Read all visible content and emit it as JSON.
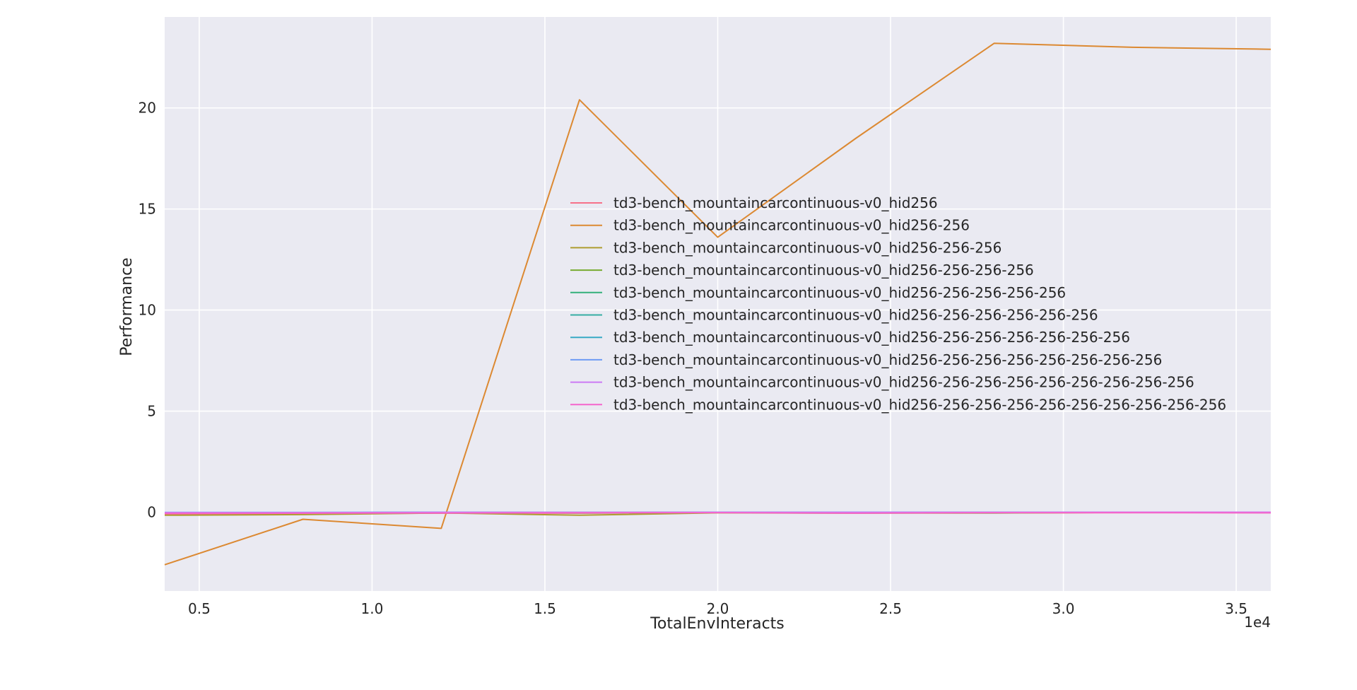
{
  "chart_data": {
    "type": "line",
    "xlabel": "TotalEnvInteracts",
    "ylabel": "Performance",
    "x_offset_label": "1e4",
    "xlim": [
      0.4,
      3.6
    ],
    "ylim": [
      -3.9,
      24.5
    ],
    "x_ticks": [
      0.5,
      1.0,
      1.5,
      2.0,
      2.5,
      3.0,
      3.5
    ],
    "x_tick_labels": [
      "0.5",
      "1.0",
      "1.5",
      "2.0",
      "2.5",
      "3.0",
      "3.5"
    ],
    "y_ticks": [
      0,
      5,
      10,
      15,
      20
    ],
    "y_tick_labels": [
      "0",
      "5",
      "10",
      "15",
      "20"
    ],
    "grid": true,
    "legend_position": "center-right",
    "x": [
      0.4,
      0.8,
      1.2,
      1.6,
      2.0,
      2.4,
      2.8,
      3.2,
      3.6
    ],
    "series": [
      {
        "name": "td3-bench_mountaincarcontinuous-v0_hid256",
        "color": "#f77189",
        "values": [
          -0.1,
          -0.08,
          -0.05,
          -0.05,
          -0.02,
          -0.03,
          -0.04,
          -0.02,
          -0.02
        ]
      },
      {
        "name": "td3-bench_mountaincarcontinuous-v0_hid256-256",
        "color": "#dc8932",
        "values": [
          -2.6,
          -0.35,
          -0.8,
          20.4,
          13.6,
          18.5,
          23.2,
          23.0,
          22.9
        ]
      },
      {
        "name": "td3-bench_mountaincarcontinuous-v0_hid256-256-256",
        "color": "#ae9d31",
        "values": [
          -0.15,
          -0.12,
          -0.04,
          -0.15,
          -0.03,
          -0.05,
          -0.04,
          -0.01,
          -0.02
        ]
      },
      {
        "name": "td3-bench_mountaincarcontinuous-v0_hid256-256-256-256",
        "color": "#77ab31",
        "values": [
          -0.05,
          -0.03,
          -0.02,
          -0.04,
          -0.01,
          -0.02,
          -0.02,
          -0.01,
          -0.01
        ]
      },
      {
        "name": "td3-bench_mountaincarcontinuous-v0_hid256-256-256-256-256",
        "color": "#33b07a",
        "values": [
          -0.03,
          -0.02,
          -0.01,
          -0.02,
          -0.01,
          -0.01,
          -0.01,
          -0.01,
          -0.01
        ]
      },
      {
        "name": "td3-bench_mountaincarcontinuous-v0_hid256-256-256-256-256-256",
        "color": "#36ada4",
        "values": [
          -0.02,
          -0.02,
          -0.01,
          -0.01,
          0.0,
          -0.01,
          -0.01,
          0.0,
          0.0
        ]
      },
      {
        "name": "td3-bench_mountaincarcontinuous-v0_hid256-256-256-256-256-256-256",
        "color": "#38a9c5",
        "values": [
          -0.04,
          -0.03,
          -0.02,
          -0.02,
          -0.01,
          -0.01,
          -0.02,
          -0.01,
          -0.01
        ]
      },
      {
        "name": "td3-bench_mountaincarcontinuous-v0_hid256-256-256-256-256-256-256-256",
        "color": "#6e9bf4",
        "values": [
          -0.01,
          -0.01,
          0.0,
          -0.01,
          0.0,
          0.0,
          0.0,
          0.0,
          0.0
        ]
      },
      {
        "name": "td3-bench_mountaincarcontinuous-v0_hid256-256-256-256-256-256-256-256-256",
        "color": "#cc7af4",
        "values": [
          -0.02,
          -0.02,
          -0.01,
          -0.01,
          -0.01,
          -0.01,
          -0.01,
          0.0,
          0.0
        ]
      },
      {
        "name": "td3-bench_mountaincarcontinuous-v0_hid256-256-256-256-256-256-256-256-256-256",
        "color": "#f565cc",
        "values": [
          -0.06,
          -0.05,
          -0.04,
          -0.03,
          -0.02,
          -0.05,
          -0.02,
          -0.02,
          -0.03
        ]
      }
    ]
  },
  "style": {
    "plot_background": "#eaeaf2",
    "grid_color": "#ffffff"
  }
}
